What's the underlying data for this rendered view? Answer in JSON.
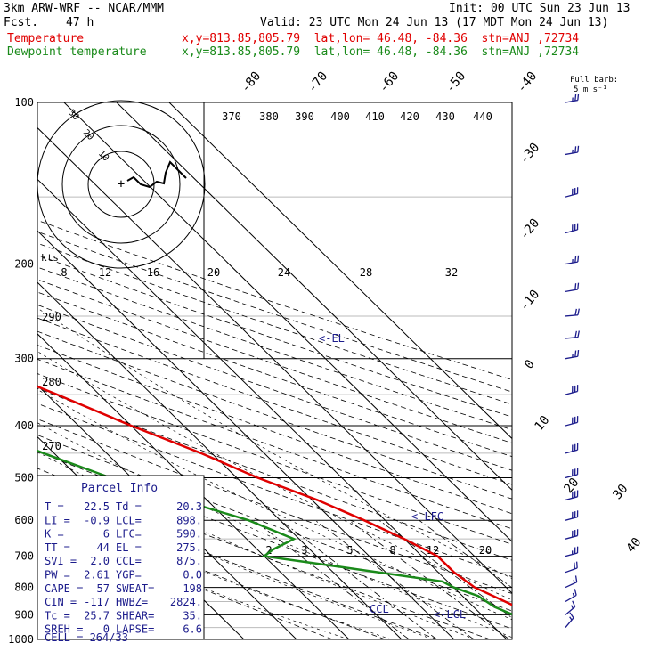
{
  "header": {
    "model": "3km ARW-WRF -- NCAR/MMM",
    "init": "Init: 00 UTC Sun 23 Jun 13",
    "fcst_label": "Fcst.",
    "fcst_value": "47 h",
    "valid": "Valid: 23 UTC Mon 24 Jun 13 (17 MDT Mon 24 Jun 13)",
    "temp_label": "Temperature",
    "temp_info": "x,y=813.85,805.79  lat,lon= 46.48, -84.36  stn=ANJ ,72734",
    "dew_label": "Dewpoint temperature",
    "dew_info": "x,y=813.85,805.79  lat,lon= 46.48, -84.36  stn=ANJ ,72734"
  },
  "colors": {
    "temperature": "#e00000",
    "dewpoint": "#1a8a1a",
    "wind": "#1c1c8c",
    "grid": "#000000"
  },
  "chart_data": {
    "type": "line",
    "title": "",
    "y_axis": {
      "label": "",
      "scale": "log-pressure",
      "ticks": [
        100,
        200,
        300,
        400,
        500,
        600,
        700,
        800,
        900,
        1000
      ]
    },
    "isotherm_labels": [
      "-80",
      "-70",
      "-60",
      "-50",
      "-40",
      "-30",
      "-20",
      "-10",
      "0",
      "10",
      "20",
      "30",
      "40"
    ],
    "theta_labels_top": [
      "370",
      "380",
      "390",
      "400",
      "410",
      "420",
      "430",
      "440"
    ],
    "theta_labels_left": [
      "290",
      "280",
      "270"
    ],
    "mixing_ratio_labels_mid": [
      "8",
      "12",
      "16",
      "20",
      "24",
      "28",
      "32"
    ],
    "mixing_ratio_labels_low": [
      "2",
      "3",
      "5",
      "8",
      "12",
      "20"
    ],
    "hodograph": {
      "rings": [
        "10",
        "20",
        "30"
      ],
      "units": "kts"
    },
    "wind_key": "Full barb: 5 m s⁻¹",
    "series": [
      {
        "name": "Temperature",
        "points": [
          [
            100,
            -55
          ],
          [
            130,
            -57
          ],
          [
            160,
            -60
          ],
          [
            200,
            -57
          ],
          [
            250,
            -48
          ],
          [
            300,
            -38
          ],
          [
            350,
            -28
          ],
          [
            400,
            -20
          ],
          [
            450,
            -12
          ],
          [
            500,
            -6
          ],
          [
            550,
            1
          ],
          [
            600,
            6
          ],
          [
            650,
            10
          ],
          [
            700,
            13
          ],
          [
            750,
            13
          ],
          [
            800,
            14
          ],
          [
            850,
            17
          ],
          [
            900,
            20
          ],
          [
            950,
            22.5
          ]
        ]
      },
      {
        "name": "Dewpoint temperature",
        "points": [
          [
            100,
            -75
          ],
          [
            130,
            -86
          ],
          [
            160,
            -92
          ],
          [
            200,
            -90
          ],
          [
            250,
            -80
          ],
          [
            300,
            -72
          ],
          [
            350,
            -62
          ],
          [
            400,
            -50
          ],
          [
            450,
            -42
          ],
          [
            500,
            -34
          ],
          [
            550,
            -25
          ],
          [
            600,
            -16
          ],
          [
            650,
            -11
          ],
          [
            680,
            -17
          ],
          [
            700,
            -20
          ],
          [
            740,
            -5
          ],
          [
            780,
            9
          ],
          [
            800,
            10
          ],
          [
            830,
            13
          ],
          [
            870,
            14
          ],
          [
            900,
            16
          ],
          [
            950,
            20.3
          ]
        ]
      }
    ],
    "annotations": [
      "<-EL",
      "<-LFC",
      "CCL",
      "<-LCL"
    ]
  },
  "parcel_info": {
    "title": "Parcel Info",
    "rows": [
      [
        "T  =",
        "22.5",
        "Td =",
        "20.3"
      ],
      [
        "LI =",
        "-0.9",
        "LCL=",
        "898."
      ],
      [
        "K  =",
        "6",
        "LFC=",
        "590."
      ],
      [
        "TT =",
        "44",
        "EL =",
        "275."
      ],
      [
        "SVI =",
        "2.0",
        "CCL=",
        "875."
      ],
      [
        "PW =",
        "2.61",
        "YGP=",
        "0.0"
      ],
      [
        "CAPE =",
        "57",
        "SWEAT=",
        "198"
      ],
      [
        "CIN =",
        "-117",
        "HWBZ=",
        "2824."
      ],
      [
        "Tc =",
        "25.7",
        "SHEAR=",
        "35."
      ],
      [
        "SREH =",
        "0",
        "LAPSE=",
        "6.6"
      ]
    ],
    "cell": "CELL = 264/33"
  },
  "wind_barbs": [
    {
      "p": 100,
      "dir": 260,
      "spd": 25
    },
    {
      "p": 125,
      "dir": 260,
      "spd": 25
    },
    {
      "p": 150,
      "dir": 255,
      "spd": 30
    },
    {
      "p": 175,
      "dir": 255,
      "spd": 30
    },
    {
      "p": 200,
      "dir": 260,
      "spd": 25
    },
    {
      "p": 225,
      "dir": 260,
      "spd": 20
    },
    {
      "p": 250,
      "dir": 265,
      "spd": 20
    },
    {
      "p": 275,
      "dir": 265,
      "spd": 20
    },
    {
      "p": 300,
      "dir": 260,
      "spd": 25
    },
    {
      "p": 350,
      "dir": 255,
      "spd": 30
    },
    {
      "p": 400,
      "dir": 255,
      "spd": 30
    },
    {
      "p": 450,
      "dir": 255,
      "spd": 30
    },
    {
      "p": 500,
      "dir": 255,
      "spd": 30
    },
    {
      "p": 550,
      "dir": 255,
      "spd": 30
    },
    {
      "p": 600,
      "dir": 255,
      "spd": 30
    },
    {
      "p": 650,
      "dir": 255,
      "spd": 30
    },
    {
      "p": 700,
      "dir": 255,
      "spd": 25
    },
    {
      "p": 750,
      "dir": 250,
      "spd": 20
    },
    {
      "p": 800,
      "dir": 245,
      "spd": 15
    },
    {
      "p": 850,
      "dir": 240,
      "spd": 15
    },
    {
      "p": 900,
      "dir": 230,
      "spd": 15
    },
    {
      "p": 950,
      "dir": 220,
      "spd": 15
    }
  ],
  "pressure_labels": [
    "100",
    "200",
    "300",
    "400",
    "500",
    "600",
    "700",
    "800",
    "900",
    "1000"
  ]
}
